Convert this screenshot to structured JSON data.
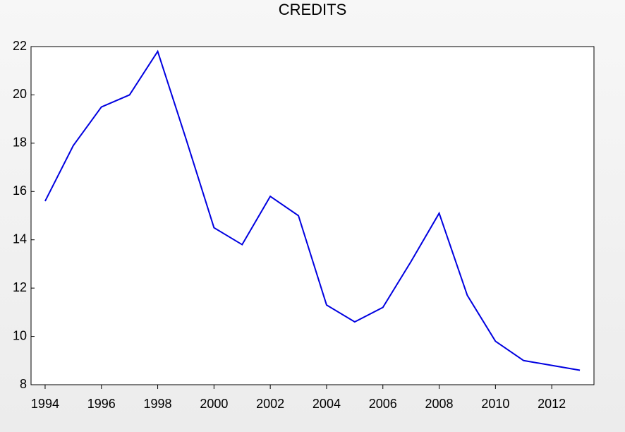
{
  "chart_data": {
    "type": "line",
    "title": "CREDITS",
    "x": [
      1994,
      1995,
      1996,
      1997,
      1998,
      1999,
      2000,
      2001,
      2002,
      2003,
      2004,
      2005,
      2006,
      2007,
      2008,
      2009,
      2010,
      2011,
      2012,
      2013
    ],
    "series": [
      {
        "name": "CREDITS",
        "color": "#0000e0",
        "values": [
          15.6,
          17.9,
          19.5,
          20.0,
          21.8,
          18.2,
          14.5,
          13.8,
          15.8,
          15.0,
          11.3,
          10.6,
          11.2,
          13.1,
          15.1,
          11.7,
          9.8,
          9.0,
          8.8,
          8.6
        ]
      }
    ],
    "xlim": [
      1993.5,
      2013.5
    ],
    "xticks": [
      1994,
      1996,
      1998,
      2000,
      2002,
      2004,
      2006,
      2008,
      2010,
      2012
    ],
    "ylim": [
      8,
      22
    ],
    "yticks": [
      8,
      10,
      12,
      14,
      16,
      18,
      20,
      22
    ],
    "grid": false
  }
}
